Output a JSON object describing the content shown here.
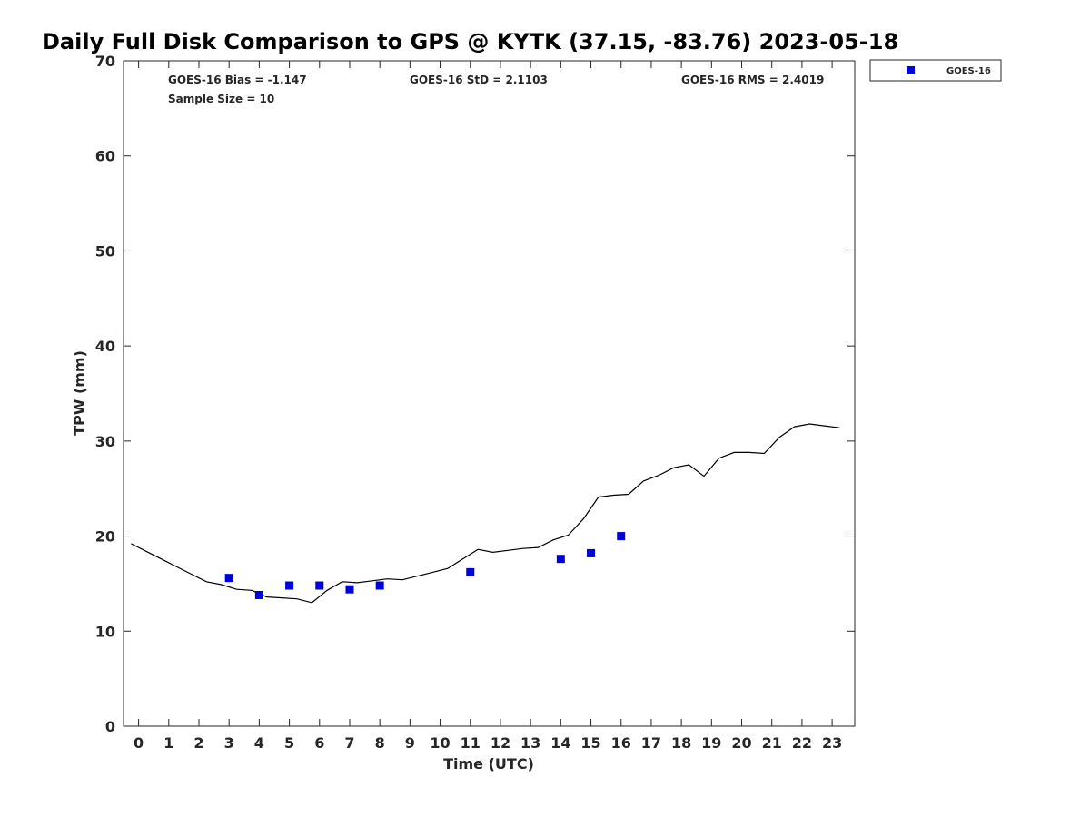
{
  "chart_data": {
    "type": "scatter",
    "title": "Daily Full Disk Comparison to GPS @ KYTK (37.15, -83.76) 2023-05-18",
    "xlabel": "Time (UTC)",
    "ylabel": "TPW (mm)",
    "xlim": [
      -0.5,
      23.75
    ],
    "ylim": [
      0,
      70
    ],
    "x_ticks": [
      0,
      1,
      2,
      3,
      4,
      5,
      6,
      7,
      8,
      9,
      10,
      11,
      12,
      13,
      14,
      15,
      16,
      17,
      18,
      19,
      20,
      21,
      22,
      23
    ],
    "y_ticks": [
      0,
      10,
      20,
      30,
      40,
      50,
      60,
      70
    ],
    "grid": false,
    "legend_position": "top-right, outside plot",
    "stats": {
      "bias": "GOES-16 Bias = -1.147",
      "sample_size": "Sample Size = 10",
      "std": "GOES-16 StD = 2.1103",
      "rms": "GOES-16 RMS = 2.4019"
    },
    "series": [
      {
        "name": "",
        "type": "line",
        "color": "#000000",
        "x": [
          -0.25,
          0.25,
          0.75,
          1.25,
          1.75,
          2.25,
          2.75,
          3.25,
          3.75,
          4.25,
          4.75,
          5.25,
          5.75,
          6.25,
          6.75,
          7.25,
          7.75,
          8.25,
          8.75,
          9.25,
          9.75,
          10.25,
          10.75,
          11.25,
          11.75,
          12.25,
          12.75,
          13.25,
          13.75,
          14.25,
          14.75,
          15.25,
          15.75,
          16.25,
          16.75,
          17.25,
          17.75,
          18.25,
          18.75,
          19.25,
          19.75,
          20.25,
          20.75,
          21.25,
          21.75,
          22.25,
          22.75,
          23.25
        ],
        "y": [
          19.2,
          18.4,
          17.6,
          16.8,
          16.0,
          15.2,
          14.9,
          14.4,
          14.3,
          13.6,
          13.5,
          13.4,
          13.0,
          14.3,
          15.2,
          15.1,
          15.3,
          15.5,
          15.4,
          15.8,
          16.2,
          16.6,
          17.6,
          18.6,
          18.3,
          18.5,
          18.7,
          18.8,
          19.6,
          20.1,
          21.8,
          24.1,
          24.3,
          24.4,
          25.8,
          26.4,
          27.2,
          27.5,
          26.3,
          28.2,
          28.8,
          28.8,
          28.7,
          30.4,
          31.5,
          31.8,
          31.6,
          31.4
        ]
      },
      {
        "name": "GOES-16",
        "type": "scatter",
        "color": "#0000dd",
        "x": [
          3,
          4,
          5,
          6,
          7,
          8,
          11,
          14,
          15,
          16
        ],
        "y": [
          15.6,
          13.8,
          14.8,
          14.8,
          14.4,
          14.8,
          16.2,
          17.6,
          18.2,
          20.0
        ]
      }
    ]
  }
}
